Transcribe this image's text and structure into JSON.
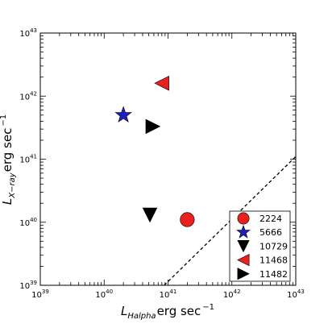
{
  "chart_data": {
    "type": "scatter",
    "xscale": "log",
    "yscale": "log",
    "xlim": [
      1e+39,
      1e+43
    ],
    "ylim": [
      1e+39,
      1e+43
    ],
    "xticks": [
      {
        "base": "10",
        "exp": "39"
      },
      {
        "base": "10",
        "exp": "40"
      },
      {
        "base": "10",
        "exp": "41"
      },
      {
        "base": "10",
        "exp": "42"
      },
      {
        "base": "10",
        "exp": "43"
      }
    ],
    "yticks": [
      {
        "base": "10",
        "exp": "39"
      },
      {
        "base": "10",
        "exp": "40"
      },
      {
        "base": "10",
        "exp": "41"
      },
      {
        "base": "10",
        "exp": "42"
      },
      {
        "base": "10",
        "exp": "43"
      }
    ],
    "xlabel": {
      "symbol": "L",
      "sub": "Halpha",
      "unit": "erg sec",
      "sup": "−1"
    },
    "ylabel": {
      "symbol": "L",
      "sub": "X−ray",
      "unit": "erg sec",
      "sup": "−1"
    },
    "legend_position": "lower-right",
    "grid": false,
    "series": [
      {
        "name": "2224",
        "marker": "circle",
        "color": "#e8211f",
        "x": 2e+41,
        "y": 1.1e+40
      },
      {
        "name": "5666",
        "marker": "star",
        "color": "#1f1fbf",
        "x": 2e+40,
        "y": 5e+41
      },
      {
        "name": "10729",
        "marker": "triangle-down",
        "color": "#000000",
        "x": 5.2e+40,
        "y": 1.3e+40
      },
      {
        "name": "11468",
        "marker": "triangle-left",
        "color": "#e8211f",
        "x": 8e+40,
        "y": 1.6e+42
      },
      {
        "name": "11482",
        "marker": "triangle-right",
        "color": "#000000",
        "x": 5.8e+40,
        "y": 3.3e+41
      }
    ],
    "reference_line": {
      "style": "dashed",
      "color": "#000000",
      "points": [
        [
          8.7e+40,
          1e+39
        ],
        [
          1e+43,
          1.1e+41
        ]
      ]
    }
  }
}
